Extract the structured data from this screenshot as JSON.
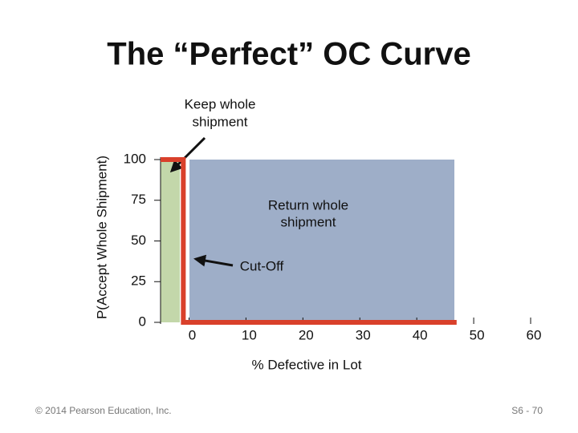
{
  "chart_data": {
    "type": "line",
    "title": "The “Perfect” OC Curve",
    "x_label": "% Defective in Lot",
    "y_label": "P(Accept Whole Shipment)",
    "x": [
      -5,
      -1,
      -1,
      47
    ],
    "series": [
      {
        "name": "OC Curve",
        "color": "#d9402b",
        "values": [
          100,
          100,
          0,
          0
        ]
      }
    ],
    "xlim": [
      -5,
      60
    ],
    "xticks": [
      0,
      10,
      20,
      30,
      40,
      50,
      60
    ],
    "ylim": [
      0,
      100
    ],
    "yticks": [
      0,
      25,
      50,
      75,
      100
    ],
    "annotations": [
      {
        "lines": [
          "Keep whole",
          "shipment"
        ]
      },
      {
        "lines": [
          "Return whole",
          "shipment"
        ]
      },
      {
        "lines": [
          "Cut-Off"
        ]
      }
    ]
  },
  "footer": {
    "left": "© 2014 Pearson Education, Inc.",
    "right": "S6 - 70"
  }
}
